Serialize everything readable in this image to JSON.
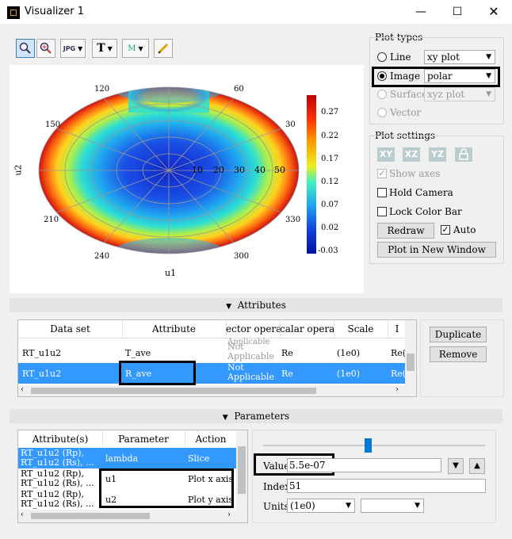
{
  "window": {
    "title": "Visualizer 1"
  },
  "toolbar": {
    "items": [
      "zoom-in",
      "zoom-region",
      "export-image",
      "text-tool",
      "marker-tool",
      "pencil-tool"
    ],
    "export_label": "JPG",
    "text_label": "T",
    "marker_label": "M"
  },
  "plot": {
    "xlabel": "u1",
    "ylabel": "u2",
    "angle_labels": [
      "120",
      "60",
      "150",
      "30",
      "210",
      "330",
      "240",
      "300"
    ],
    "radial_labels": [
      "10",
      "20",
      "30",
      "40",
      "50"
    ],
    "colorbar_ticks": [
      "0.27",
      "0.22",
      "0.17",
      "0.12",
      "0.07",
      "0.02",
      "-0.03"
    ]
  },
  "plot_types": {
    "title": "Plot types",
    "options": [
      {
        "label": "Line",
        "combo": "xy plot",
        "selected": false,
        "enabled": true
      },
      {
        "label": "Image",
        "combo": "polar",
        "selected": true,
        "enabled": true
      },
      {
        "label": "Surface",
        "combo": "xyz plot",
        "selected": false,
        "enabled": false
      },
      {
        "label": "Vector",
        "combo": "",
        "selected": false,
        "enabled": false
      }
    ]
  },
  "plot_settings": {
    "title": "Plot settings",
    "view_buttons": [
      "XY",
      "XZ",
      "YZ"
    ],
    "show_axes": "Show axes",
    "hold_camera": "Hold Camera",
    "lock_color_bar": "Lock Color Bar",
    "redraw": "Redraw",
    "auto": "Auto",
    "plot_new_window": "Plot in New Window"
  },
  "attributes": {
    "section_title": "Attributes",
    "columns": [
      "Data set",
      "Attribute",
      "ector operatic",
      "calar operatic",
      "Scale",
      "I"
    ],
    "rows": [
      {
        "dataset": "RT_u1u2",
        "attribute": "T_ave",
        "vector_op": "Not Applicable",
        "scalar_op": "Re",
        "scale": "(1e0)",
        "extra": "Re("
      },
      {
        "dataset": "RT_u1u2",
        "attribute": "R_ave",
        "vector_op": "Not Applicable",
        "scalar_op": "Re",
        "scale": "(1e0)",
        "extra": "Re("
      }
    ],
    "top_partial": "Applicable",
    "duplicate": "Duplicate",
    "remove": "Remove"
  },
  "parameters": {
    "section_title": "Parameters",
    "columns": [
      "Attribute(s)",
      "Parameter",
      "Action"
    ],
    "rows": [
      {
        "attrs": [
          "RT_u1u2 (Rp),",
          "RT_u1u2 (Rs), ..."
        ],
        "parameter": "lambda",
        "action": "Slice"
      },
      {
        "attrs": [
          "RT_u1u2 (Rp),",
          "RT_u1u2 (Rs), ..."
        ],
        "parameter": "u1",
        "action": "Plot x axis"
      },
      {
        "attrs": [
          "RT_u1u2 (Rp),",
          "RT_u1u2 (Rs), ..."
        ],
        "parameter": "u2",
        "action": "Plot y axis"
      }
    ],
    "value_label": "Value",
    "value": "5.5e-07",
    "index_label": "Index",
    "index": "51",
    "units_label": "Units",
    "units": "(1e0)",
    "slider_fraction": 0.47
  }
}
